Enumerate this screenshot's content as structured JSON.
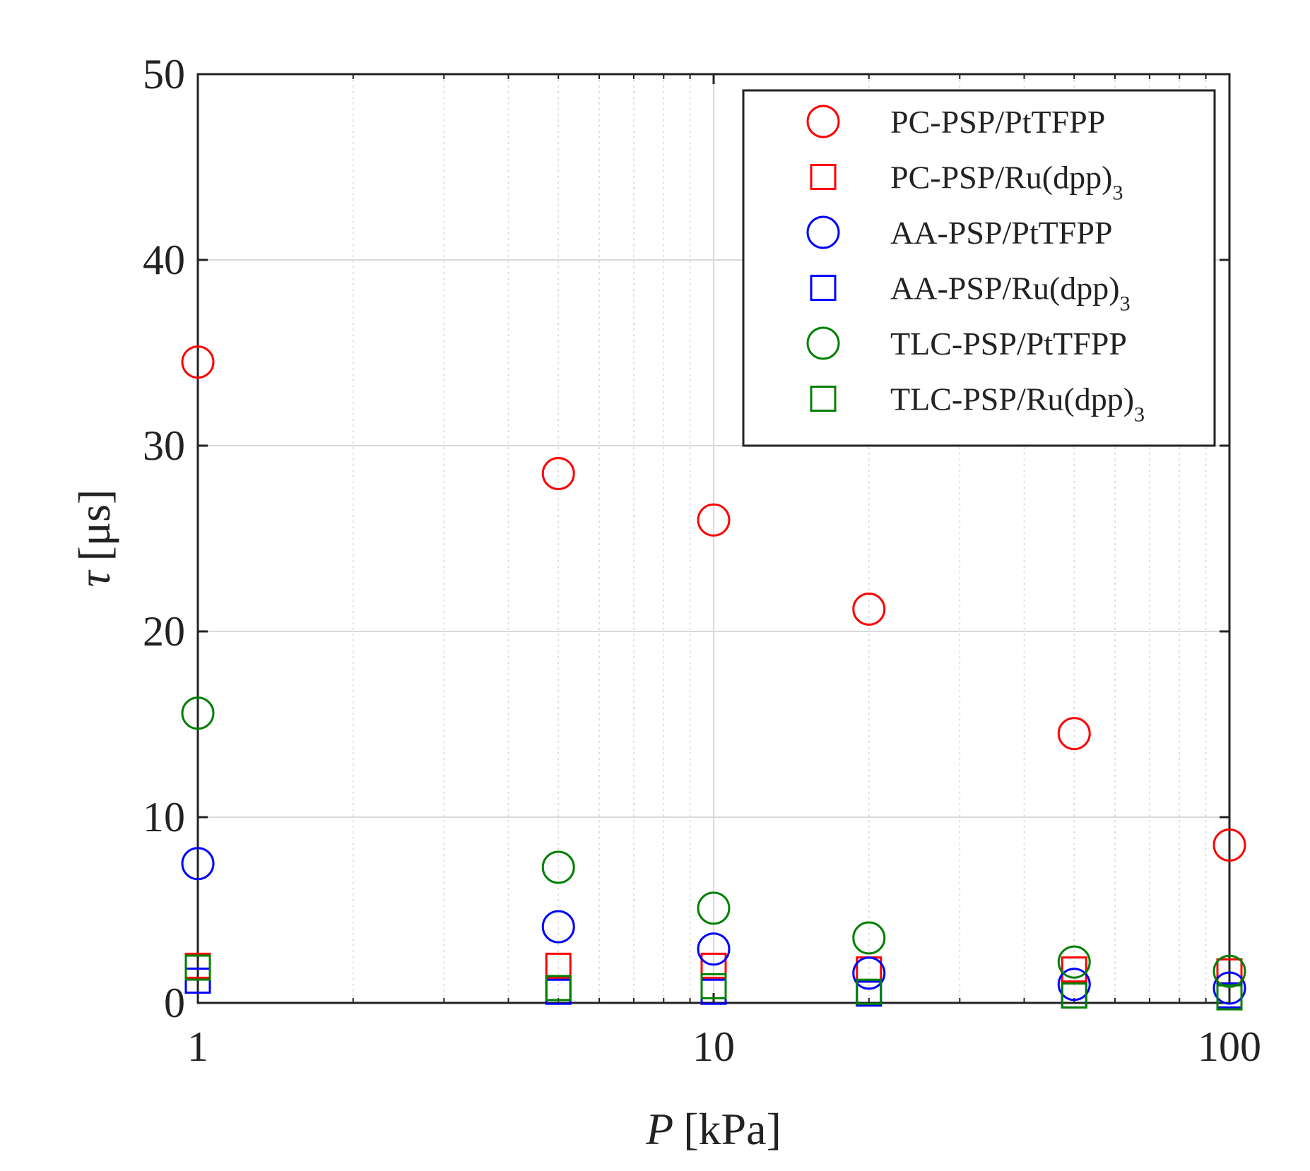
{
  "chart_data": {
    "type": "scatter",
    "title": "",
    "xlabel": "P [kPa]",
    "xlabel_var": "P",
    "xlabel_unit": "[kPa]",
    "ylabel": "τ [μs]",
    "ylabel_var": "τ",
    "ylabel_unit": "[μs]",
    "xscale": "log",
    "xlim": [
      1,
      100
    ],
    "ylim": [
      0,
      50
    ],
    "xticks": [
      1,
      10,
      100
    ],
    "xtick_labels": [
      "1",
      "10",
      "100"
    ],
    "yticks": [
      0,
      10,
      20,
      30,
      40,
      50
    ],
    "ytick_labels": [
      "0",
      "10",
      "20",
      "30",
      "40",
      "50"
    ],
    "grid": true,
    "legend_position": "top-right",
    "x": [
      1,
      5,
      10,
      20,
      50,
      100
    ],
    "series": [
      {
        "name": "PC-PSP/PtTFPP",
        "label_main": "PC-PSP/PtTFPP",
        "label_sub": "",
        "marker": "circle",
        "color": "#ff0000",
        "values": [
          34.5,
          28.5,
          26.0,
          21.2,
          14.5,
          8.5
        ]
      },
      {
        "name": "PC-PSP/Ru(dpp)3",
        "label_main": "PC-PSP/Ru(dpp)",
        "label_sub": "3",
        "marker": "square",
        "color": "#ff0000",
        "values": [
          2.0,
          2.0,
          2.0,
          1.8,
          1.8,
          1.7
        ]
      },
      {
        "name": "AA-PSP/PtTFPP",
        "label_main": "AA-PSP/PtTFPP",
        "label_sub": "",
        "marker": "circle",
        "color": "#0000ff",
        "values": [
          7.5,
          4.1,
          2.9,
          1.6,
          1.0,
          0.8
        ]
      },
      {
        "name": "AA-PSP/Ru(dpp)3",
        "label_main": "AA-PSP/Ru(dpp)",
        "label_sub": "3",
        "marker": "square",
        "color": "#0000ff",
        "values": [
          1.2,
          0.6,
          0.6,
          0.5,
          0.4,
          0.4
        ]
      },
      {
        "name": "TLC-PSP/PtTFPP",
        "label_main": "TLC-PSP/PtTFPP",
        "label_sub": "",
        "marker": "circle",
        "color": "#008000",
        "values": [
          15.6,
          7.3,
          5.1,
          3.5,
          2.2,
          1.7
        ]
      },
      {
        "name": "TLC-PSP/Ru(dpp)3",
        "label_main": "TLC-PSP/Ru(dpp)",
        "label_sub": "3",
        "marker": "square",
        "color": "#008000",
        "values": [
          1.9,
          0.8,
          0.9,
          0.6,
          0.4,
          0.3
        ]
      }
    ]
  }
}
